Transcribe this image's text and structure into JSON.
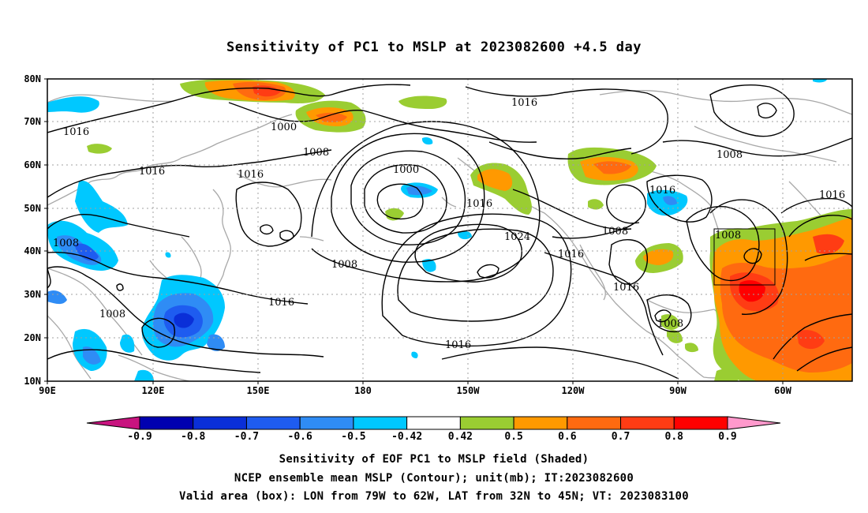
{
  "title": "Sensitivity of PC1 to MSLP at 2023082600 +4.5 day",
  "lat_labels": [
    "80N",
    "70N",
    "60N",
    "50N",
    "40N",
    "30N",
    "20N",
    "10N"
  ],
  "lon_labels": [
    "90E",
    "120E",
    "150E",
    "180",
    "150W",
    "120W",
    "90W",
    "60W"
  ],
  "contour_labels": [
    {
      "text": "1016"
    },
    {
      "text": "1000"
    },
    {
      "text": "1008"
    },
    {
      "text": "1016"
    },
    {
      "text": "1016"
    },
    {
      "text": "1000"
    },
    {
      "text": "1016"
    },
    {
      "text": "1024"
    },
    {
      "text": "1008"
    },
    {
      "text": "1016"
    },
    {
      "text": "1008"
    },
    {
      "text": "1008"
    },
    {
      "text": "1016"
    },
    {
      "text": "1016"
    },
    {
      "text": "1008"
    },
    {
      "text": "1016"
    },
    {
      "text": "1008"
    },
    {
      "text": "1016"
    },
    {
      "text": "1016"
    },
    {
      "text": "1008"
    }
  ],
  "colorbar": {
    "labels": [
      "-0.9",
      "-0.8",
      "-0.7",
      "-0.6",
      "-0.5",
      "-0.42",
      "0.42",
      "0.5",
      "0.6",
      "0.7",
      "0.8",
      "0.9"
    ],
    "colors": [
      "#0000b0",
      "#0a2fd8",
      "#1e5cf0",
      "#2f8cf5",
      "#00c8ff",
      "#ffffff",
      "#9acd32",
      "#ff9900",
      "#ff6a10",
      "#ff3c14",
      "#ff0000"
    ],
    "low_end_color": "#c8147f",
    "high_end_color": "#ff99cc"
  },
  "captions": {
    "line1": "Sensitivity of EOF PC1 to MSLP field (Shaded)",
    "line2": "NCEP ensemble mean MSLP (Contour); unit(mb); IT:2023082600",
    "line3": "Valid area (box): LON from 79W to 62W, LAT from 32N to 45N; VT: 2023083100"
  }
}
